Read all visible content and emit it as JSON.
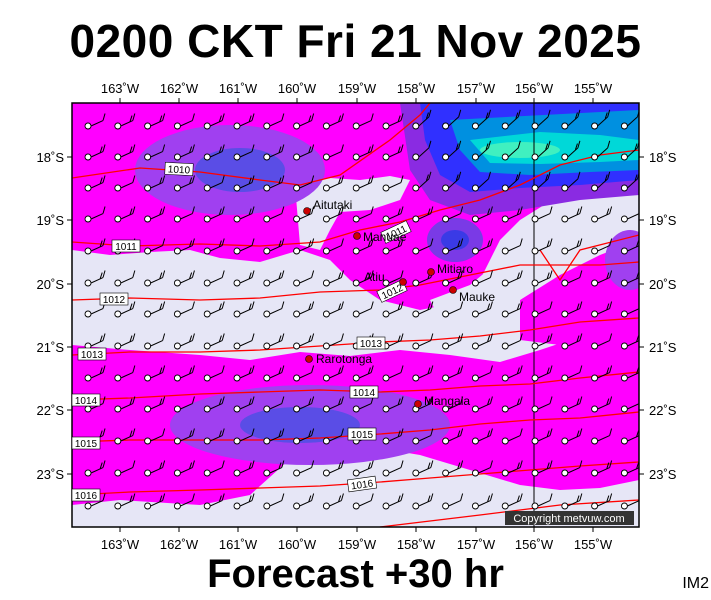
{
  "header": {
    "title": "0200 CKT Fri 21 Nov 2025"
  },
  "footer": {
    "forecast": "Forecast +30 hr",
    "product_tag": "IM2"
  },
  "copyright": "Copyright metvuw.com",
  "colors": {
    "background_low": "#e6e6f6",
    "magenta": "#ff00ff",
    "purple": "#8a2be2",
    "violet": "#5a4de6",
    "deep_blue": "#2020ff",
    "cyan": "#00e0e0",
    "isobar": "#ff0000"
  },
  "axes": {
    "longitude_labels": [
      "163˚W",
      "162˚W",
      "161˚W",
      "160˚W",
      "159˚W",
      "158˚W",
      "157˚W",
      "156˚W",
      "155˚W"
    ],
    "latitude_labels": [
      "18˚S",
      "19˚S",
      "20˚S",
      "21˚S",
      "22˚S",
      "23˚S"
    ]
  },
  "places": [
    {
      "name": "Aitutaki"
    },
    {
      "name": "Manuae"
    },
    {
      "name": "Mitiaro"
    },
    {
      "name": "Atiu"
    },
    {
      "name": "Mauke"
    },
    {
      "name": "Rarotonga"
    },
    {
      "name": "Mangaia"
    }
  ],
  "isobars": [
    {
      "label": "1010"
    },
    {
      "label": "1011"
    },
    {
      "label": "1011"
    },
    {
      "label": "1012"
    },
    {
      "label": "1012"
    },
    {
      "label": "1013"
    },
    {
      "label": "1013"
    },
    {
      "label": "1014"
    },
    {
      "label": "1014"
    },
    {
      "label": "1015"
    },
    {
      "label": "1015"
    },
    {
      "label": "1016"
    },
    {
      "label": "1016"
    }
  ]
}
